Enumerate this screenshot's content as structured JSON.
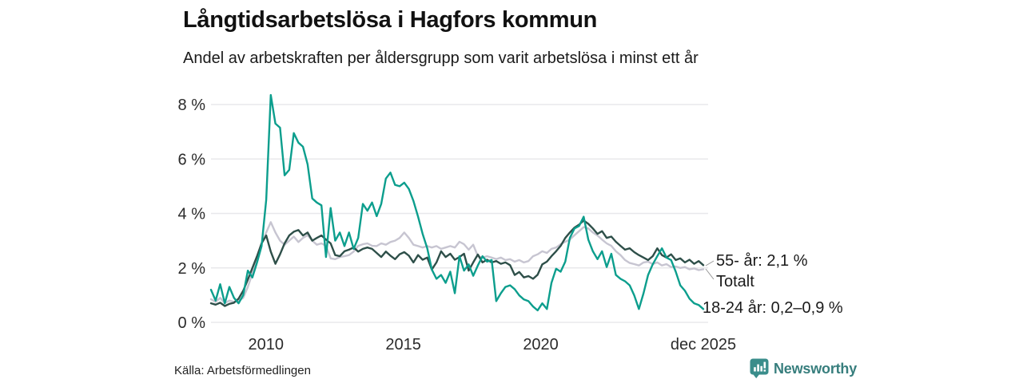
{
  "header": {
    "title": "Långtidsarbetslösa i Hagfors kommun",
    "subtitle": "Andel av arbetskraften per åldersgrupp som varit arbetslösa i minst ett år"
  },
  "footer": {
    "source": "Källa: Arbetsförmedlingen",
    "brand": "Newsworthy"
  },
  "colors": {
    "series_18_24": "#0c9e8d",
    "series_55": "#2e4f49",
    "series_totalt": "#c7c5d1",
    "grid": "#e8e8eb",
    "connector": "#999999",
    "brand_teal": "#3a8d8b",
    "brand_text": "#377e7d"
  },
  "chart_data": {
    "type": "line",
    "title": "Långtidsarbetslösa i Hagfors kommun",
    "subtitle": "Andel av arbetskraften per åldersgrupp som varit arbetslösa i minst ett år",
    "xlabel": "",
    "ylabel": "",
    "unit": "%",
    "grid": true,
    "legend_position": "end-of-line-labels",
    "x_range": [
      2008.0,
      2025.917
    ],
    "x_step_years": 0.1667,
    "ylim": [
      0,
      8.6
    ],
    "y_ticks": [
      {
        "v": 0,
        "label": "0 %"
      },
      {
        "v": 2,
        "label": "2 %"
      },
      {
        "v": 4,
        "label": "4 %"
      },
      {
        "v": 6,
        "label": "6 %"
      },
      {
        "v": 8,
        "label": "8 %"
      }
    ],
    "x_ticks": [
      {
        "t": 2010,
        "label": "2010"
      },
      {
        "t": 2015,
        "label": "2015"
      },
      {
        "t": 2020,
        "label": "2020"
      },
      {
        "t": 2025.917,
        "label": "dec 2025"
      }
    ],
    "series": [
      {
        "name": "Totalt",
        "color": "#c7c5d1",
        "values": [
          0.85,
          0.75,
          0.9,
          0.7,
          0.8,
          0.75,
          0.8,
          0.9,
          1.3,
          1.8,
          2.4,
          2.9,
          3.3,
          3.68,
          3.3,
          3.0,
          2.85,
          3.0,
          3.15,
          2.95,
          3.1,
          3.2,
          3.0,
          2.85,
          2.9,
          2.81,
          2.35,
          2.32,
          2.4,
          2.43,
          2.47,
          2.6,
          2.81,
          2.87,
          2.9,
          2.81,
          2.8,
          2.9,
          2.85,
          2.95,
          3.0,
          3.1,
          3.3,
          3.1,
          2.85,
          2.8,
          2.75,
          2.8,
          2.75,
          2.8,
          2.7,
          2.75,
          2.8,
          2.75,
          2.96,
          2.87,
          2.67,
          2.85,
          2.43,
          2.38,
          2.43,
          2.38,
          2.32,
          2.38,
          2.29,
          2.32,
          2.23,
          2.29,
          2.2,
          2.25,
          2.43,
          2.5,
          2.61,
          2.55,
          2.7,
          2.75,
          2.87,
          2.96,
          3.04,
          3.2,
          3.35,
          3.5,
          3.45,
          3.3,
          3.19,
          3.04,
          2.9,
          2.81,
          2.61,
          2.47,
          2.29,
          2.18,
          2.14,
          2.09,
          2.2,
          2.23,
          2.14,
          2.2,
          2.09,
          2.14,
          2.03,
          2.05,
          2.0,
          2.03,
          1.95,
          1.98,
          1.92,
          1.95
        ]
      },
      {
        "name": "55- år",
        "color": "#2e4f49",
        "values": [
          0.7,
          0.65,
          0.72,
          0.6,
          0.68,
          0.72,
          0.87,
          1.16,
          1.57,
          2.0,
          2.43,
          2.9,
          3.19,
          2.6,
          2.15,
          2.5,
          2.9,
          3.19,
          3.33,
          3.39,
          3.19,
          3.3,
          3.0,
          3.1,
          3.19,
          3.04,
          2.9,
          2.47,
          2.43,
          2.61,
          2.67,
          2.75,
          2.6,
          2.7,
          2.75,
          2.7,
          2.55,
          2.4,
          2.6,
          2.45,
          2.32,
          2.5,
          2.58,
          2.45,
          2.2,
          2.47,
          2.3,
          2.38,
          1.94,
          2.2,
          2.61,
          2.4,
          2.52,
          2.3,
          2.4,
          2.52,
          1.9,
          2.2,
          2.49,
          2.2,
          2.3,
          2.2,
          2.25,
          2.15,
          2.2,
          2.1,
          1.74,
          1.85,
          1.65,
          1.7,
          1.6,
          1.75,
          2.13,
          2.23,
          2.43,
          2.61,
          2.81,
          3.1,
          3.3,
          3.48,
          3.59,
          3.74,
          3.62,
          3.45,
          3.25,
          3.35,
          3.1,
          3.15,
          2.96,
          2.81,
          2.67,
          2.72,
          2.58,
          2.47,
          2.38,
          2.29,
          2.43,
          2.72,
          2.47,
          2.38,
          2.5,
          2.29,
          2.35,
          2.2,
          2.3,
          2.15,
          2.25,
          2.1
        ]
      },
      {
        "name": "18-24 år",
        "color": "#0c9e8d",
        "values": [
          1.2,
          0.8,
          1.4,
          0.7,
          1.3,
          0.9,
          0.7,
          1.0,
          1.9,
          1.65,
          2.2,
          2.8,
          4.5,
          8.35,
          7.3,
          7.15,
          5.4,
          5.6,
          6.95,
          6.6,
          6.45,
          5.8,
          4.55,
          4.4,
          4.3,
          2.4,
          4.2,
          3.0,
          3.3,
          2.8,
          3.3,
          2.7,
          3.1,
          4.35,
          4.1,
          4.4,
          3.9,
          4.35,
          5.28,
          5.5,
          5.05,
          5.0,
          5.13,
          4.9,
          4.46,
          3.88,
          3.25,
          2.72,
          1.94,
          1.6,
          1.74,
          1.45,
          1.86,
          1.07,
          2.43,
          1.9,
          2.13,
          1.71,
          2.09,
          2.43,
          2.23,
          2.29,
          0.78,
          1.07,
          1.3,
          1.36,
          1.22,
          0.99,
          0.84,
          0.78,
          0.58,
          0.44,
          0.7,
          0.49,
          1.45,
          1.97,
          1.86,
          2.23,
          3.1,
          3.45,
          3.54,
          3.88,
          3.04,
          2.61,
          2.32,
          2.61,
          2.03,
          2.52,
          1.74,
          1.6,
          1.51,
          1.36,
          0.99,
          0.49,
          1.07,
          1.74,
          2.13,
          2.43,
          2.72,
          2.38,
          2.29,
          1.86,
          1.36,
          1.16,
          0.87,
          0.7,
          0.64,
          0.49
        ]
      }
    ],
    "end_labels": [
      {
        "series": "55- år",
        "text": "55- år: 2,1 %"
      },
      {
        "series": "Totalt",
        "text": "Totalt"
      },
      {
        "series": "18-24 år",
        "text": "18-24 år: 0,2–0,9 %"
      }
    ]
  }
}
